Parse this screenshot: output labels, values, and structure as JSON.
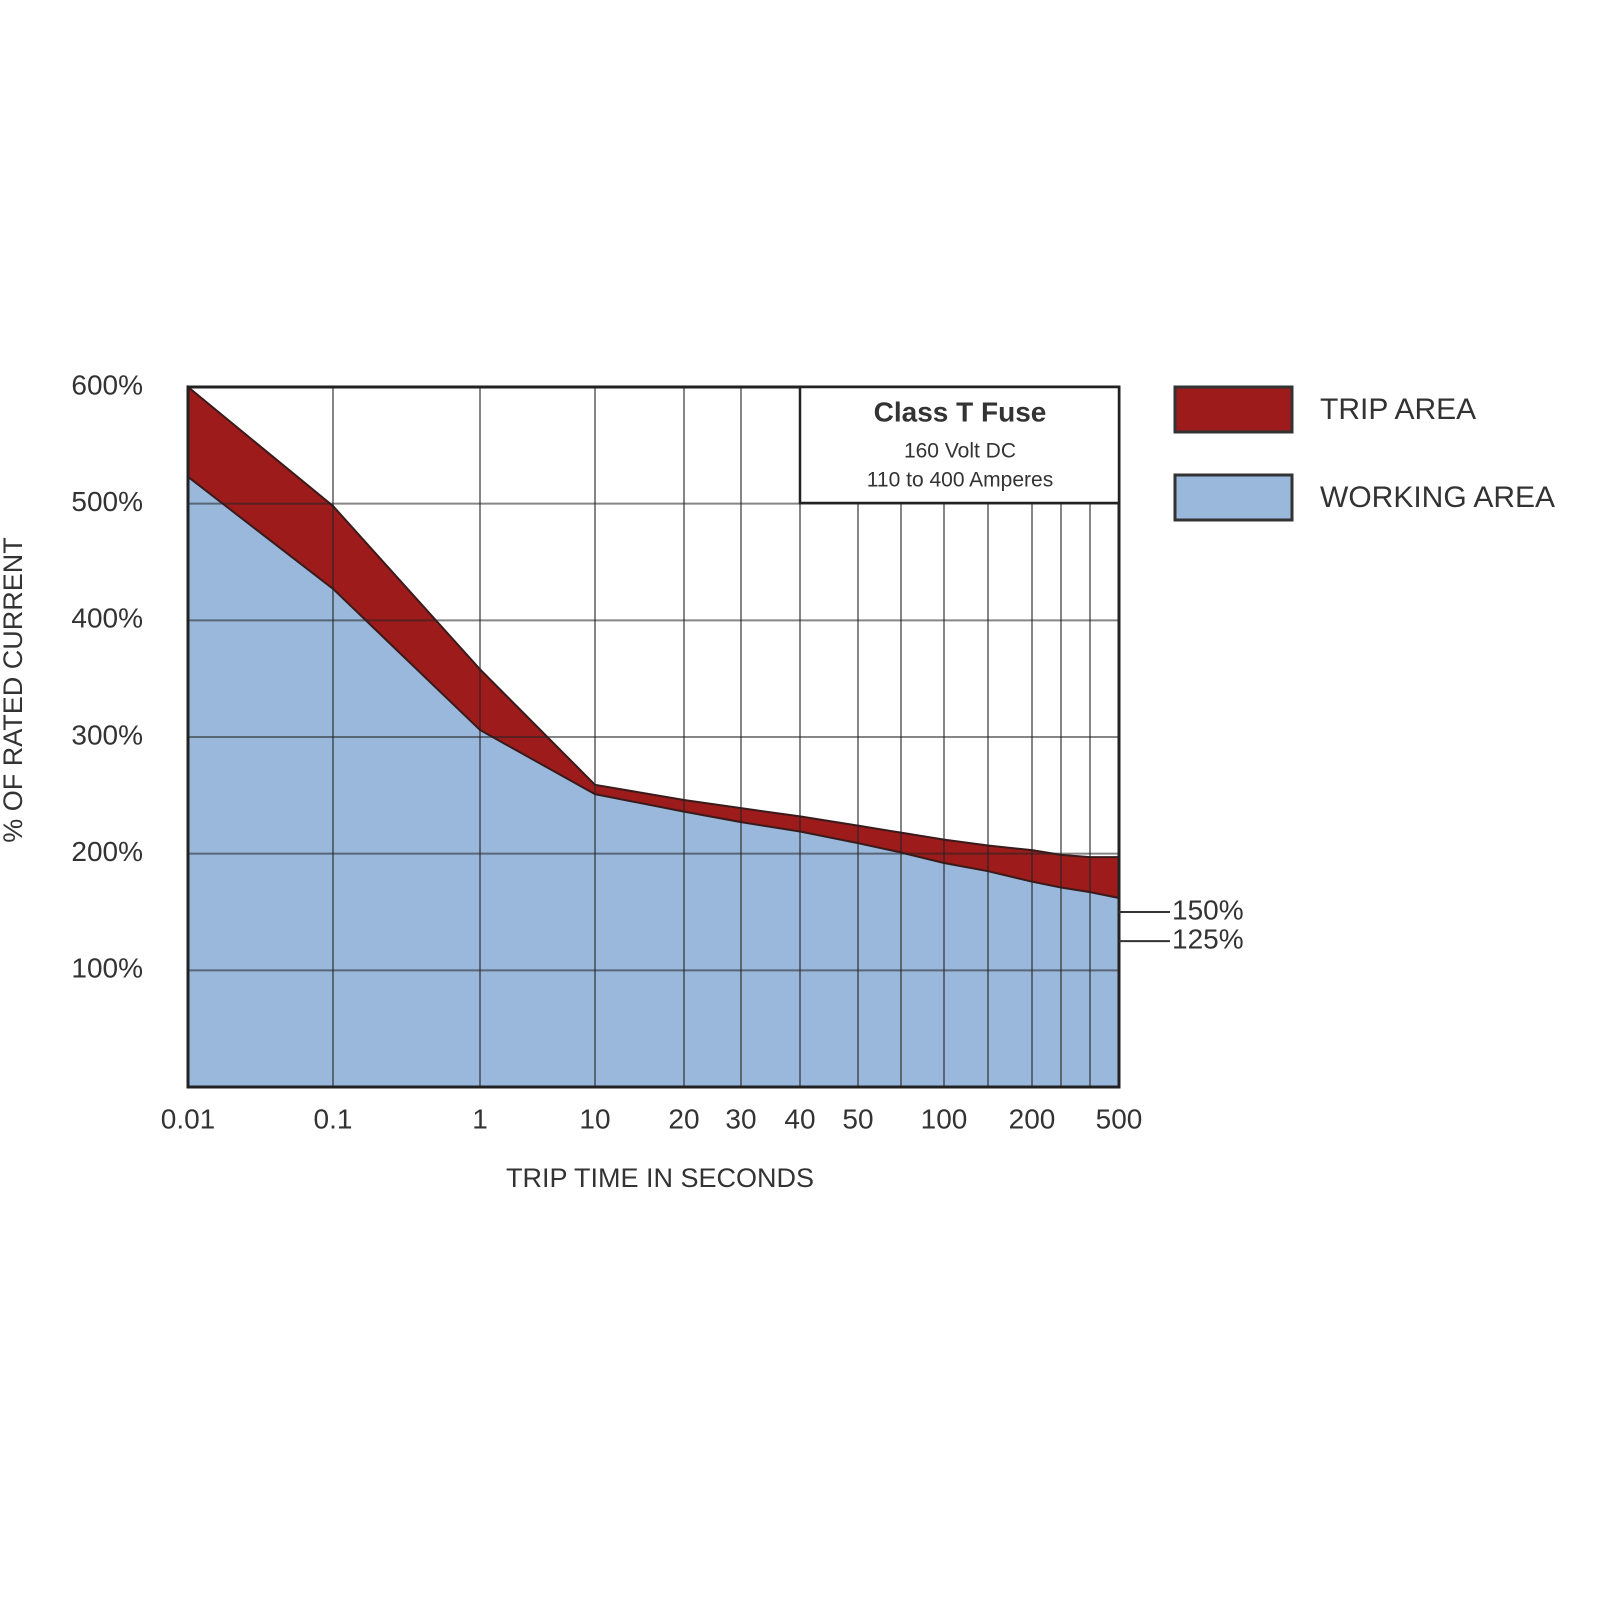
{
  "chart_data": {
    "type": "area",
    "title": "Class T Fuse",
    "subtitle": [
      "160 Volt DC",
      "110 to 400 Amperes"
    ],
    "x_label": "TRIP TIME IN SECONDS",
    "y_label": "% OF RATED CURRENT",
    "categories": [
      "0.01",
      "0.1",
      "1",
      "10",
      "20",
      "30",
      "40",
      "50",
      null,
      "100",
      null,
      "200",
      null,
      null,
      "500"
    ],
    "series": [
      {
        "name": "TRIP AREA",
        "color": "#9e1b1b",
        "values": [
          600,
          498,
          358,
          259,
          246,
          239,
          232,
          224,
          218,
          212,
          207,
          203,
          199,
          197,
          197
        ]
      },
      {
        "name": "WORKING AREA",
        "color": "#9ab8dc",
        "values": [
          523,
          427,
          306,
          251,
          236,
          227,
          219,
          209,
          201,
          192,
          185,
          176,
          171,
          167,
          162
        ]
      }
    ],
    "ylim": [
      0,
      600
    ],
    "yticks": [
      {
        "value": 100,
        "label": "100%"
      },
      {
        "value": 200,
        "label": "200%"
      },
      {
        "value": 300,
        "label": "300%"
      },
      {
        "value": 400,
        "label": "400%"
      },
      {
        "value": 500,
        "label": "500%"
      },
      {
        "value": 600,
        "label": "600%"
      }
    ],
    "annotations": [
      {
        "value": 150,
        "label": "150%"
      },
      {
        "value": 125,
        "label": "125%"
      }
    ],
    "grid": true,
    "legend": "right"
  }
}
